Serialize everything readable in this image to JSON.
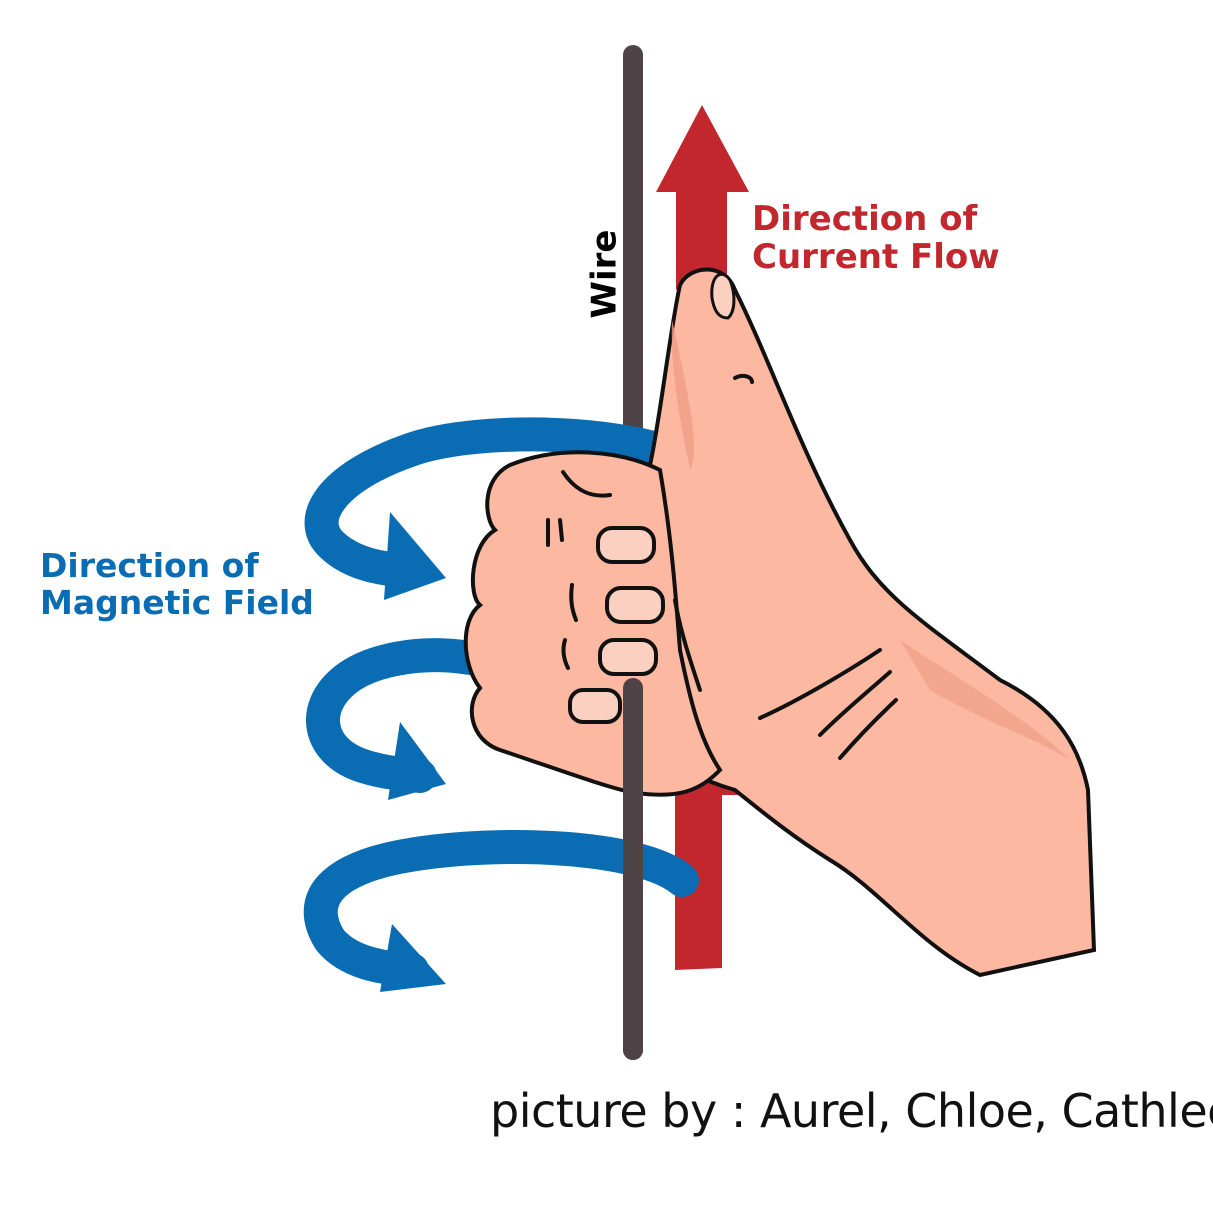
{
  "labels": {
    "wire": "Wire",
    "current_line1": "Direction of",
    "current_line2": "Current Flow",
    "field_line1": "Direction of",
    "field_line2": "Magnetic Field",
    "credit": "picture by : Aurel, Chloe, Cathleen"
  },
  "colors": {
    "current_arrow": "#c1272d",
    "field_arrow": "#0a6db3",
    "wire": "#4e4346",
    "skin": "#fcb8a0",
    "skin_shadow": "#f09e86",
    "outline": "#111111",
    "current_text": "#c1272d",
    "field_text": "#0a6db3",
    "credit_text": "#111111"
  },
  "icons": {
    "hand": "right-hand-thumbs-up-icon",
    "current_arrow": "up-arrow-icon",
    "field_arrow": "curved-arrow-icon"
  }
}
